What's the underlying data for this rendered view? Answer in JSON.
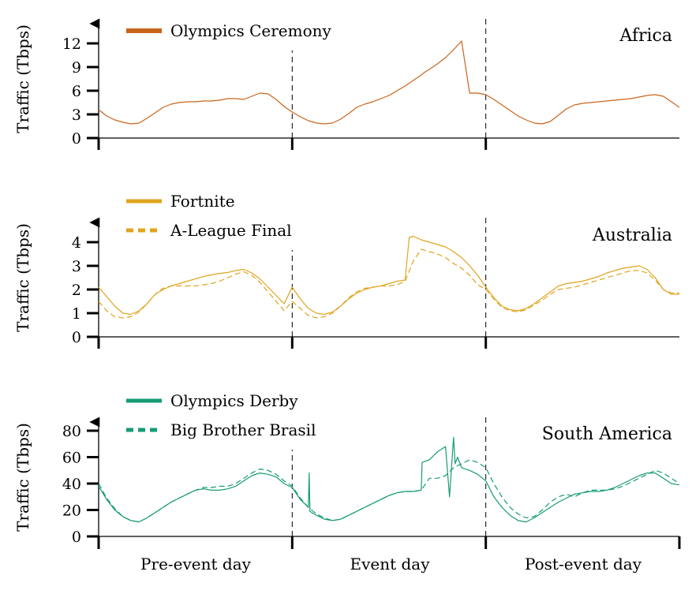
{
  "chart_data": {
    "type": "line",
    "x_unit": "hours",
    "x_range": [
      0,
      72
    ],
    "x_categories": [
      "Pre-event day",
      "Event day",
      "Post-event day"
    ],
    "x_boundaries": [
      0,
      24,
      48,
      72
    ],
    "panels": [
      {
        "region": "Africa",
        "ylabel": "Traffic (Tbps)",
        "ylim": [
          0,
          14
        ],
        "yticks": [
          0,
          3,
          6,
          9,
          12
        ],
        "color": "#c8651b",
        "legend_placement": "top-left",
        "series": [
          {
            "name": "Olympics Ceremony",
            "style": "solid",
            "x": [
              0,
              1,
              2,
              3,
              4,
              5,
              6,
              7,
              8,
              9,
              10,
              11,
              12,
              13,
              14,
              15,
              16,
              17,
              18,
              19,
              20,
              21,
              22,
              23,
              24,
              25,
              26,
              27,
              28,
              29,
              30,
              31,
              32,
              33,
              34,
              35,
              36,
              37,
              38,
              39,
              40,
              40.5,
              41,
              42,
              43,
              44,
              45,
              46,
              47,
              48,
              49,
              50,
              51,
              52,
              53,
              54,
              55,
              56,
              57,
              58,
              59,
              60,
              61,
              62,
              63,
              64,
              65,
              66,
              67,
              68,
              69,
              70,
              71,
              72
            ],
            "y": [
              3.6,
              2.8,
              2.3,
              2.0,
              1.8,
              1.9,
              2.5,
              3.2,
              3.9,
              4.3,
              4.5,
              4.6,
              4.6,
              4.7,
              4.7,
              4.8,
              5.0,
              5.0,
              4.9,
              5.3,
              5.7,
              5.6,
              4.9,
              4.0,
              3.3,
              2.7,
              2.2,
              1.9,
              1.8,
              1.9,
              2.4,
              3.1,
              3.9,
              4.3,
              4.6,
              5.0,
              5.4,
              6.0,
              6.6,
              7.3,
              8.0,
              8.4,
              8.7,
              9.4,
              10.2,
              11.2,
              12.3,
              5.7,
              5.7,
              5.5,
              4.9,
              4.2,
              3.5,
              2.8,
              2.3,
              1.9,
              1.8,
              2.1,
              2.9,
              3.7,
              4.2,
              4.4,
              4.5,
              4.6,
              4.7,
              4.8,
              4.9,
              5.0,
              5.2,
              5.4,
              5.5,
              5.3,
              4.6,
              3.9
            ]
          }
        ]
      },
      {
        "region": "Australia",
        "ylabel": "Traffic (Tbps)",
        "ylim": [
          0,
          5
        ],
        "yticks": [
          0,
          1,
          2,
          3,
          4
        ],
        "color": "#e0a41e",
        "legend_placement": "top-left",
        "series": [
          {
            "name": "Fortnite",
            "style": "solid",
            "x": [
              0,
              1,
              2,
              3,
              4,
              5,
              6,
              7,
              8,
              9,
              10,
              11,
              12,
              13,
              14,
              15,
              16,
              17,
              18,
              19,
              20,
              21,
              22,
              23,
              24,
              25,
              26,
              27,
              28,
              29,
              30,
              31,
              32,
              33,
              34,
              35,
              36,
              37,
              38,
              38.5,
              39,
              40,
              41,
              42,
              43,
              44,
              45,
              46,
              47,
              48,
              49,
              50,
              51,
              52,
              53,
              54,
              55,
              56,
              57,
              58,
              59,
              60,
              61,
              62,
              63,
              64,
              65,
              66,
              67,
              68,
              69,
              70,
              71,
              72
            ],
            "y": [
              2.1,
              1.7,
              1.3,
              1.0,
              0.95,
              1.1,
              1.4,
              1.8,
              2.0,
              2.15,
              2.25,
              2.35,
              2.45,
              2.55,
              2.62,
              2.68,
              2.72,
              2.8,
              2.85,
              2.7,
              2.45,
              2.1,
              1.75,
              1.4,
              2.1,
              1.6,
              1.2,
              1.0,
              0.95,
              1.05,
              1.3,
              1.6,
              1.85,
              2.0,
              2.1,
              2.15,
              2.25,
              2.35,
              2.4,
              4.2,
              4.25,
              4.1,
              4.0,
              3.9,
              3.8,
              3.6,
              3.35,
              3.0,
              2.6,
              2.1,
              1.65,
              1.3,
              1.15,
              1.1,
              1.2,
              1.4,
              1.65,
              1.9,
              2.15,
              2.25,
              2.3,
              2.35,
              2.45,
              2.55,
              2.7,
              2.8,
              2.9,
              2.95,
              3.0,
              2.85,
              2.5,
              2.0,
              1.8,
              1.8
            ]
          },
          {
            "name": "A-League Final",
            "style": "dashed",
            "x": [
              0,
              1,
              2,
              3,
              4,
              5,
              6,
              7,
              8,
              9,
              10,
              11,
              12,
              13,
              14,
              15,
              16,
              17,
              18,
              19,
              20,
              21,
              22,
              23,
              24,
              25,
              26,
              27,
              28,
              29,
              30,
              31,
              32,
              33,
              34,
              35,
              36,
              37,
              38,
              39,
              40,
              41,
              42,
              43,
              44,
              45,
              46,
              47,
              48,
              49,
              50,
              51,
              52,
              53,
              54,
              55,
              56,
              57,
              58,
              59,
              60,
              61,
              62,
              63,
              64,
              65,
              66,
              67,
              68,
              69,
              70,
              71,
              72
            ],
            "y": [
              1.5,
              1.1,
              0.85,
              0.8,
              0.85,
              1.05,
              1.4,
              1.8,
              2.05,
              2.15,
              2.15,
              2.15,
              2.15,
              2.2,
              2.25,
              2.35,
              2.5,
              2.65,
              2.75,
              2.6,
              2.3,
              1.9,
              1.5,
              1.1,
              1.5,
              1.2,
              0.9,
              0.8,
              0.85,
              1.0,
              1.3,
              1.65,
              1.9,
              2.05,
              2.1,
              2.15,
              2.15,
              2.2,
              2.35,
              3.2,
              3.7,
              3.6,
              3.5,
              3.35,
              3.1,
              2.9,
              2.6,
              2.2,
              2.0,
              1.6,
              1.25,
              1.1,
              1.05,
              1.15,
              1.35,
              1.55,
              1.8,
              2.0,
              2.05,
              2.1,
              2.2,
              2.3,
              2.4,
              2.5,
              2.6,
              2.7,
              2.8,
              2.8,
              2.7,
              2.4,
              2.0,
              1.85,
              1.85
            ]
          }
        ]
      },
      {
        "region": "South America",
        "ylabel": "Traffic (Tbps)",
        "ylim": [
          0,
          88
        ],
        "yticks": [
          0,
          20,
          40,
          60,
          80
        ],
        "color": "#169b75",
        "legend_placement": "top-left",
        "series": [
          {
            "name": "Olympics Derby",
            "style": "solid",
            "x": [
              0,
              1,
              2,
              3,
              4,
              5,
              6,
              7,
              8,
              9,
              10,
              11,
              12,
              13,
              14,
              15,
              16,
              17,
              18,
              19,
              20,
              21,
              22,
              23,
              24,
              25,
              26,
              26.1,
              26.2,
              27,
              28,
              29,
              30,
              31,
              32,
              33,
              34,
              35,
              36,
              37,
              38,
              39,
              40,
              40.1,
              41,
              42,
              43,
              43.5,
              44,
              44.2,
              44.5,
              45,
              46,
              47,
              48,
              49,
              50,
              51,
              52,
              53,
              54,
              55,
              56,
              57,
              58,
              59,
              60,
              61,
              62,
              63,
              64,
              65,
              66,
              67,
              68,
              69,
              70,
              71,
              72
            ],
            "y": [
              38,
              28,
              20,
              15,
              12,
              11,
              14,
              18,
              22,
              26,
              29,
              32,
              35,
              36,
              35,
              35,
              36,
              38,
              42,
              46,
              48,
              47,
              45,
              40,
              37,
              28,
              22,
              48,
              19,
              16,
              13,
              12,
              13,
              16,
              19,
              22,
              25,
              28,
              31,
              33,
              34,
              34,
              35,
              56,
              58,
              64,
              68,
              30,
              75,
              55,
              60,
              52,
              50,
              47,
              42,
              30,
              22,
              16,
              12,
              11,
              14,
              18,
              22,
              26,
              29,
              32,
              33,
              34,
              34,
              35,
              37,
              40,
              43,
              46,
              48,
              48,
              44,
              40,
              39
            ]
          },
          {
            "name": "Big Brother Brasil",
            "style": "dashed",
            "x": [
              0,
              1,
              2,
              3,
              4,
              5,
              6,
              7,
              8,
              9,
              10,
              11,
              12,
              13,
              14,
              15,
              16,
              17,
              18,
              19,
              20,
              21,
              22,
              23,
              24,
              25,
              26,
              27,
              28,
              29,
              30,
              31,
              32,
              33,
              34,
              35,
              36,
              37,
              38,
              39,
              40,
              41,
              42,
              43,
              44,
              45,
              46,
              47,
              48,
              49,
              50,
              51,
              52,
              53,
              54,
              55,
              56,
              57,
              58,
              59,
              60,
              61,
              62,
              63,
              64,
              65,
              66,
              67,
              68,
              69,
              70,
              71,
              72
            ],
            "y": [
              40,
              29,
              21,
              15,
              12,
              11,
              14,
              18,
              22,
              26,
              29,
              32,
              35,
              37,
              37,
              38,
              38,
              40,
              44,
              48,
              51,
              50,
              47,
              42,
              38,
              29,
              22,
              17,
              14,
              12,
              13,
              16,
              19,
              22,
              25,
              28,
              31,
              33,
              34,
              34,
              35,
              44,
              44,
              46,
              52,
              55,
              58,
              56,
              52,
              40,
              30,
              22,
              17,
              14,
              15,
              20,
              26,
              30,
              32,
              30,
              33,
              35,
              35,
              35,
              36,
              38,
              41,
              44,
              47,
              50,
              48,
              44,
              40
            ]
          }
        ]
      }
    ]
  }
}
